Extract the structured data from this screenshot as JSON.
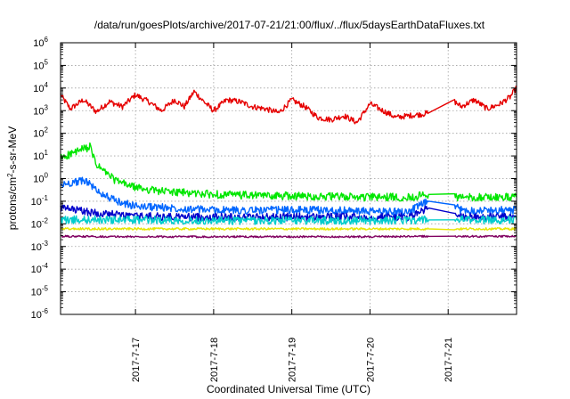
{
  "chart_data": {
    "type": "line",
    "title": "/data/run/goesPlots/archive/2017-07-21/21:00/flux/../flux/5daysEarthDataFluxes.txt",
    "xlabel": "Coordinated Universal Time (UTC)",
    "ylabel": {
      "main": "protons/cm",
      "sup": "2",
      "rest": "-s-sr-MeV"
    },
    "log_y": true,
    "grid": true,
    "xlim": [
      "2017-07-16T01:00",
      "2017-07-21T21:00"
    ],
    "ylim": [
      1e-06,
      1000000.0
    ],
    "x_ticks": [
      {
        "value": "2017-07-17T00:00",
        "label": "2017-7-17"
      },
      {
        "value": "2017-07-18T00:00",
        "label": "2017-7-18"
      },
      {
        "value": "2017-07-19T00:00",
        "label": "2017-7-19"
      },
      {
        "value": "2017-07-20T00:00",
        "label": "2017-7-20"
      },
      {
        "value": "2017-07-21T00:00",
        "label": "2017-7-21"
      }
    ],
    "y_ticks": [
      {
        "value": 1e-06,
        "base": "10",
        "exp": "-6"
      },
      {
        "value": 1e-05,
        "base": "10",
        "exp": "-5"
      },
      {
        "value": 0.0001,
        "base": "10",
        "exp": "-4"
      },
      {
        "value": 0.001,
        "base": "10",
        "exp": "-3"
      },
      {
        "value": 0.01,
        "base": "10",
        "exp": "-2"
      },
      {
        "value": 0.1,
        "base": "10",
        "exp": "-1"
      },
      {
        "value": 1,
        "base": "10",
        "exp": "0"
      },
      {
        "value": 10,
        "base": "10",
        "exp": "1"
      },
      {
        "value": 100,
        "base": "10",
        "exp": "2"
      },
      {
        "value": 1000,
        "base": "10",
        "exp": "3"
      },
      {
        "value": 10000,
        "base": "10",
        "exp": "4"
      },
      {
        "value": 100000,
        "base": "10",
        "exp": "5"
      },
      {
        "value": 1000000,
        "base": "10",
        "exp": "6"
      }
    ],
    "series": [
      {
        "color": "#e60000",
        "x": [
          "2017-07-16T01:00",
          "2017-07-16T04:00",
          "2017-07-16T08:00",
          "2017-07-16T12:00",
          "2017-07-16T16:00",
          "2017-07-16T20:00",
          "2017-07-17T00:00",
          "2017-07-17T04:00",
          "2017-07-17T08:00",
          "2017-07-17T12:00",
          "2017-07-17T15:00",
          "2017-07-17T18:00",
          "2017-07-17T21:00",
          "2017-07-18T00:00",
          "2017-07-18T04:00",
          "2017-07-18T08:00",
          "2017-07-18T12:00",
          "2017-07-18T16:00",
          "2017-07-18T20:00",
          "2017-07-19T00:00",
          "2017-07-19T04:00",
          "2017-07-19T08:00",
          "2017-07-19T12:00",
          "2017-07-19T16:00",
          "2017-07-19T20:00",
          "2017-07-20T00:00",
          "2017-07-20T04:00",
          "2017-07-20T08:00",
          "2017-07-20T12:00",
          "2017-07-20T16:00",
          "2017-07-20T18:00",
          "2017-07-21T02:00",
          "2017-07-21T04:00",
          "2017-07-21T08:00",
          "2017-07-21T12:00",
          "2017-07-21T16:00",
          "2017-07-21T19:00",
          "2017-07-21T21:00"
        ],
        "values": [
          5000,
          1200,
          3000,
          900,
          2500,
          1500,
          5000,
          2500,
          1000,
          3000,
          1500,
          7000,
          2500,
          1000,
          3000,
          2500,
          1500,
          1200,
          800,
          3000,
          1500,
          500,
          400,
          600,
          300,
          2000,
          1000,
          500,
          600,
          700,
          800,
          2500,
          1500,
          3000,
          1200,
          2000,
          4000,
          10000
        ]
      },
      {
        "color": "#00e600",
        "x": [
          "2017-07-16T01:00",
          "2017-07-16T04:00",
          "2017-07-16T08:00",
          "2017-07-16T10:00",
          "2017-07-16T12:00",
          "2017-07-16T18:00",
          "2017-07-17T00:00",
          "2017-07-17T06:00",
          "2017-07-17T12:00",
          "2017-07-18T00:00",
          "2017-07-18T12:00",
          "2017-07-19T00:00",
          "2017-07-19T12:00",
          "2017-07-20T00:00",
          "2017-07-20T12:00",
          "2017-07-20T18:00",
          "2017-07-21T02:00",
          "2017-07-21T04:00",
          "2017-07-21T12:00",
          "2017-07-21T21:00"
        ],
        "values": [
          8,
          12,
          20,
          25,
          4,
          0.8,
          0.4,
          0.3,
          0.25,
          0.2,
          0.18,
          0.17,
          0.16,
          0.15,
          0.15,
          0.2,
          0.15,
          0.15,
          0.15,
          0.15
        ]
      },
      {
        "color": "#0066ff",
        "x": [
          "2017-07-16T01:00",
          "2017-07-16T05:00",
          "2017-07-16T09:00",
          "2017-07-16T12:00",
          "2017-07-16T18:00",
          "2017-07-17T00:00",
          "2017-07-17T12:00",
          "2017-07-18T00:00",
          "2017-07-18T12:00",
          "2017-07-19T00:00",
          "2017-07-19T12:00",
          "2017-07-20T00:00",
          "2017-07-20T12:00",
          "2017-07-20T18:00",
          "2017-07-21T02:00",
          "2017-07-21T04:00",
          "2017-07-21T12:00",
          "2017-07-21T21:00"
        ],
        "values": [
          0.5,
          0.7,
          0.8,
          0.3,
          0.1,
          0.06,
          0.05,
          0.04,
          0.04,
          0.04,
          0.04,
          0.035,
          0.035,
          0.1,
          0.06,
          0.04,
          0.04,
          0.04
        ]
      },
      {
        "color": "#0000cc",
        "x": [
          "2017-07-16T01:00",
          "2017-07-16T06:00",
          "2017-07-16T12:00",
          "2017-07-16T18:00",
          "2017-07-17T00:00",
          "2017-07-17T12:00",
          "2017-07-18T00:00",
          "2017-07-18T12:00",
          "2017-07-19T00:00",
          "2017-07-19T12:00",
          "2017-07-20T00:00",
          "2017-07-20T12:00",
          "2017-07-20T18:00",
          "2017-07-21T02:00",
          "2017-07-21T04:00",
          "2017-07-21T12:00",
          "2017-07-21T21:00"
        ],
        "values": [
          0.05,
          0.04,
          0.03,
          0.025,
          0.022,
          0.02,
          0.02,
          0.02,
          0.02,
          0.02,
          0.02,
          0.02,
          0.05,
          0.025,
          0.02,
          0.02,
          0.02
        ]
      },
      {
        "color": "#00cccc",
        "x": [
          "2017-07-16T01:00",
          "2017-07-16T12:00",
          "2017-07-17T00:00",
          "2017-07-18T00:00",
          "2017-07-19T00:00",
          "2017-07-20T00:00",
          "2017-07-20T18:00",
          "2017-07-21T02:00",
          "2017-07-21T04:00",
          "2017-07-21T21:00"
        ],
        "values": [
          0.015,
          0.015,
          0.015,
          0.014,
          0.014,
          0.014,
          0.015,
          0.015,
          0.015,
          0.015
        ]
      },
      {
        "color": "#e6e600",
        "x": [
          "2017-07-16T01:00",
          "2017-07-17T00:00",
          "2017-07-18T00:00",
          "2017-07-19T00:00",
          "2017-07-20T00:00",
          "2017-07-20T18:00",
          "2017-07-21T02:00",
          "2017-07-21T04:00",
          "2017-07-21T21:00"
        ],
        "values": [
          0.006,
          0.006,
          0.006,
          0.006,
          0.006,
          0.006,
          0.006,
          0.006,
          0.006
        ]
      },
      {
        "color": "#800060",
        "x": [
          "2017-07-16T01:00",
          "2017-07-17T00:00",
          "2017-07-18T00:00",
          "2017-07-19T00:00",
          "2017-07-20T00:00",
          "2017-07-20T18:00",
          "2017-07-21T02:00",
          "2017-07-21T04:00",
          "2017-07-21T21:00"
        ],
        "values": [
          0.0028,
          0.0027,
          0.0027,
          0.0027,
          0.0027,
          0.0028,
          0.0028,
          0.0028,
          0.0028
        ]
      }
    ]
  }
}
